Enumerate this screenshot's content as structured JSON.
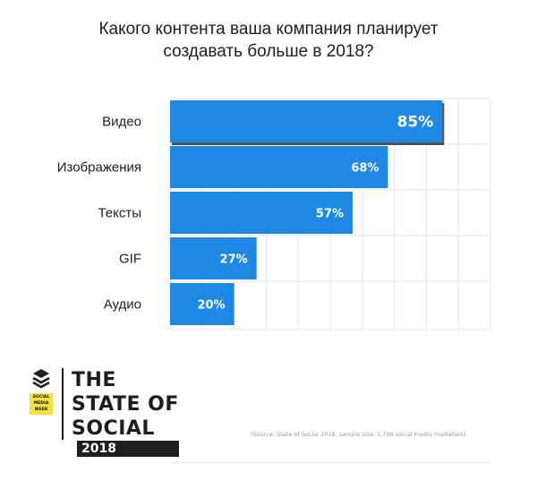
{
  "title": {
    "line1": "Какого контента ваша компания планирует",
    "line2": "создавать больше в 2018?"
  },
  "chart_data": {
    "type": "bar",
    "orientation": "horizontal",
    "categories": [
      "Видео",
      "Изображения",
      "Тексты",
      "GIF",
      "Аудио"
    ],
    "values": [
      85,
      68,
      57,
      27,
      20
    ],
    "value_labels": [
      "85%",
      "68%",
      "57%",
      "27%",
      "20%"
    ],
    "xlim": [
      0,
      100
    ],
    "grid": true,
    "bar_color": "#1e88e5",
    "highlight_category": "Видео"
  },
  "brand": {
    "logo_tag": [
      "SOCIAL",
      "MEDIA",
      "WEEK"
    ],
    "title_lines": [
      "THE",
      "STATE OF",
      "SOCIAL"
    ],
    "year": "2018",
    "logo_color": "#f4e33a"
  },
  "source": "(Source: State of Social 2018, sample size: 1,796 social media marketers)"
}
